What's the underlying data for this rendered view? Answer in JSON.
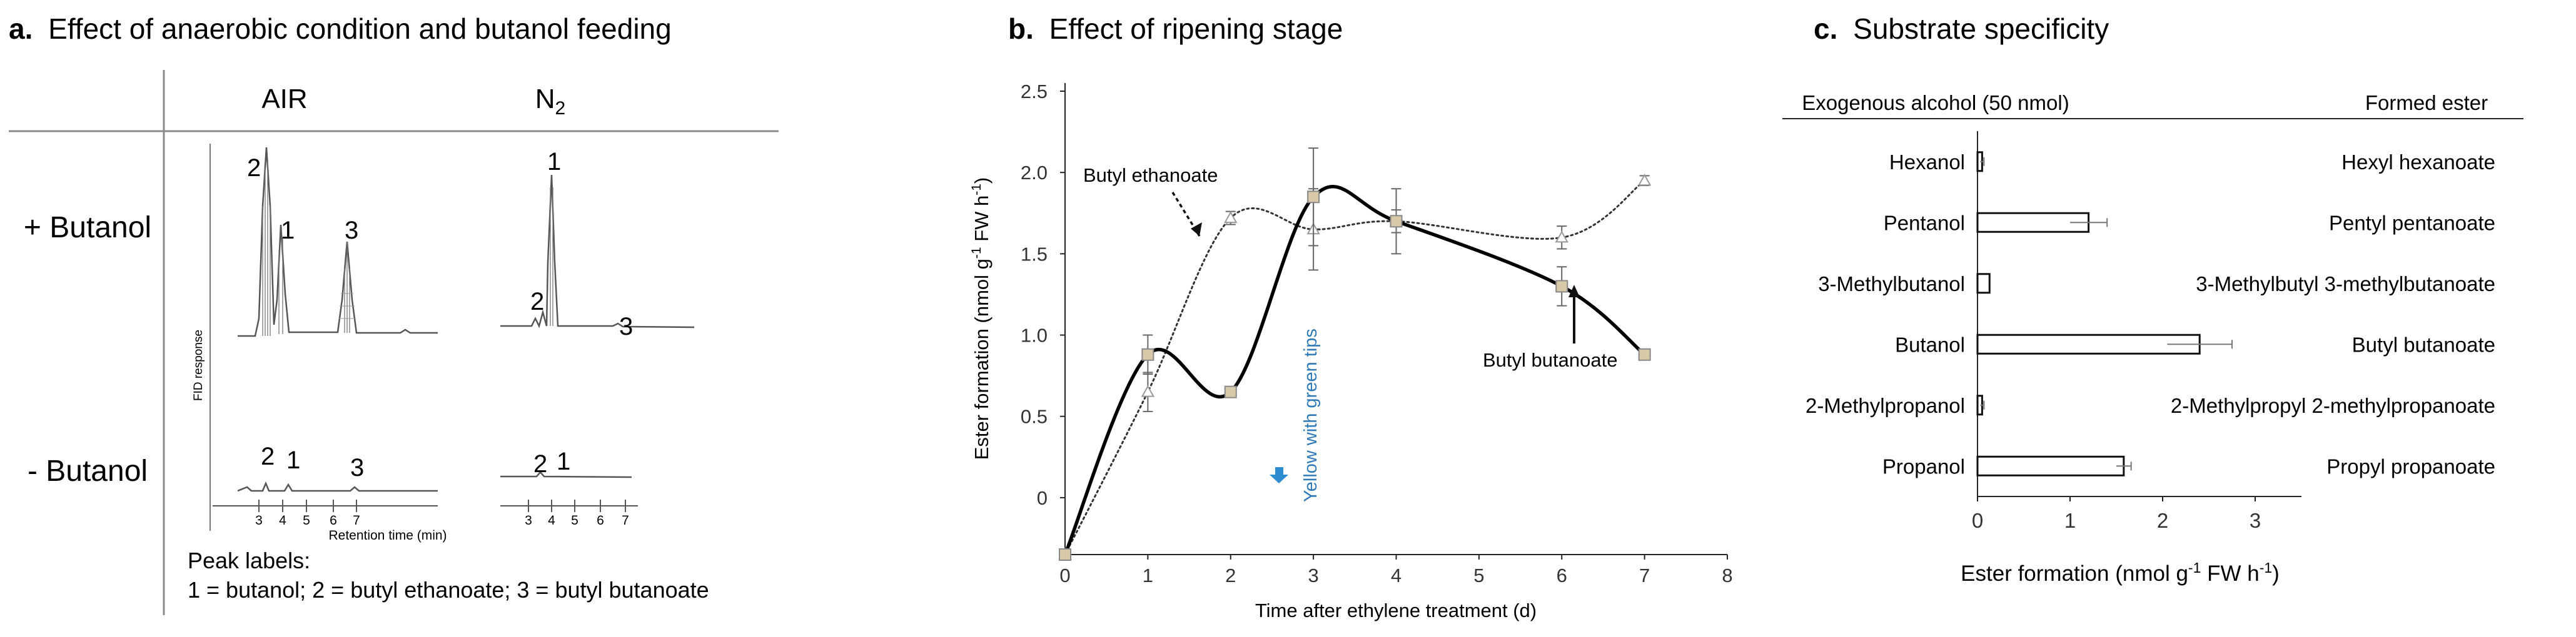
{
  "panel_a": {
    "letter": "a.",
    "title": "Effect of anaerobic condition and butanol feeding",
    "col_air": "AIR",
    "col_n2": "N",
    "col_n2_sub": "2",
    "row_plus": "+ Butanol",
    "row_minus": "- Butanol",
    "y_axis": "FID response",
    "x_axis": "Retention time (min)",
    "ticks": [
      "3",
      "4",
      "5",
      "6",
      "7"
    ],
    "legend_heading": "Peak labels:",
    "legend_text": "1 = butanol;   2 = butyl ethanoate;   3 = butyl butanoate",
    "peak_numbers": {
      "air_plus": [
        "2",
        "1",
        "3"
      ],
      "n2_plus": [
        "1",
        "2",
        "3"
      ],
      "air_minus": [
        "2",
        "1",
        "3"
      ],
      "n2_minus": [
        "2",
        "1"
      ]
    }
  },
  "panel_b": {
    "letter": "b.",
    "title": "Effect of ripening stage",
    "annot_ethanoate": "Butyl ethanoate",
    "annot_butanoate": "Butyl butanoate",
    "annot_yellow": "Yellow with green tips"
  },
  "panel_c": {
    "letter": "c.",
    "title": "Substrate specificity",
    "col_left": "Exogenous alcohol (50 nmol)",
    "col_right": "Formed ester",
    "esters": [
      "Hexyl hexanoate",
      "Pentyl pentanoate",
      "3-Methylbutyl 3-methylbutanoate",
      "Butyl butanoate",
      "2-Methylpropyl 2-methylpropanoate",
      "Propyl propanoate"
    ]
  },
  "chart_data": [
    {
      "type": "line",
      "xlabel": "Time after ethylene treatment (d)",
      "ylabel_main": "Ester formation (nmol g",
      "ylabel_sup1": "-1",
      "ylabel_mid": " FW h",
      "ylabel_sup2": "-1",
      "ylabel_end": ")",
      "xlim": [
        0,
        8
      ],
      "ylim": [
        -0.35,
        2.55
      ],
      "x_ticks": [
        "0",
        "1",
        "2",
        "3",
        "4",
        "5",
        "6",
        "7",
        "8"
      ],
      "y_ticks": [
        "0",
        "0.5",
        "1.0",
        "1.5",
        "2.0",
        "2.5"
      ],
      "series": [
        {
          "name": "Butyl ethanoate",
          "x": [
            0,
            1,
            2,
            3,
            4,
            6,
            7
          ],
          "y": [
            -0.35,
            0.65,
            1.72,
            1.65,
            1.7,
            1.6,
            1.95
          ],
          "err": [
            0,
            0.12,
            0.04,
            0.25,
            0.2,
            0.07,
            0.03
          ]
        },
        {
          "name": "Butyl butanoate",
          "x": [
            0,
            1,
            2,
            3,
            4,
            6,
            7
          ],
          "y": [
            -0.35,
            0.88,
            0.65,
            1.85,
            1.7,
            1.3,
            0.88
          ],
          "err": [
            0,
            0.12,
            0.02,
            0.3,
            0.07,
            0.12,
            0.02
          ]
        }
      ]
    },
    {
      "type": "bar",
      "categories": [
        "Hexanol",
        "Pentanol",
        "3-Methylbutanol",
        "Butanol",
        "2-Methylpropanol",
        "Propanol"
      ],
      "values": [
        0.05,
        1.2,
        0.13,
        2.4,
        0.05,
        1.58
      ],
      "errors": [
        0.02,
        0.2,
        0.0,
        0.35,
        0.02,
        0.08
      ],
      "xlabel_main": "Ester formation (nmol g",
      "xlabel_sup1": "-1",
      "xlabel_mid": " FW h",
      "xlabel_sup2": "-1",
      "xlabel_end": ")",
      "xlim": [
        0,
        3.5
      ],
      "x_ticks": [
        "0",
        "1",
        "2",
        "3"
      ]
    }
  ]
}
